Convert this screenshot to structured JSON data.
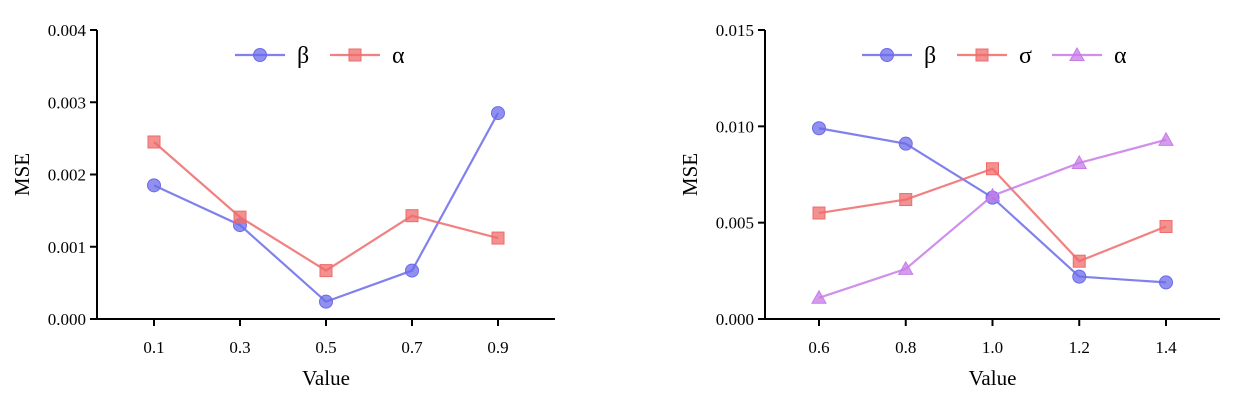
{
  "chart_data": [
    {
      "type": "line",
      "xlabel": "Value",
      "ylabel": "MSE",
      "categories": [
        "0.1",
        "0.3",
        "0.5",
        "0.7",
        "0.9"
      ],
      "ylim": [
        0,
        0.004
      ],
      "yticks": [
        "0.000",
        "0.001",
        "0.002",
        "0.003",
        "0.004"
      ],
      "grid": false,
      "legend_position": "top-center",
      "series": [
        {
          "name": "β",
          "marker": "circle",
          "color": "#6b6bea",
          "values": [
            0.00185,
            0.0013,
            0.00024,
            0.00067,
            0.00285
          ]
        },
        {
          "name": "α",
          "marker": "square",
          "color": "#ef6b6b",
          "values": [
            0.00245,
            0.00141,
            0.00067,
            0.00143,
            0.00112
          ]
        }
      ]
    },
    {
      "type": "line",
      "xlabel": "Value",
      "ylabel": "MSE",
      "categories": [
        "0.6",
        "0.8",
        "1.0",
        "1.2",
        "1.4"
      ],
      "ylim": [
        0,
        0.015
      ],
      "yticks": [
        "0.000",
        "0.005",
        "0.010",
        "0.015"
      ],
      "grid": false,
      "legend_position": "top-center",
      "series": [
        {
          "name": "β",
          "marker": "circle",
          "color": "#6b6bea",
          "values": [
            0.0099,
            0.0091,
            0.0063,
            0.0022,
            0.0019
          ]
        },
        {
          "name": "σ",
          "marker": "square",
          "color": "#ef6b6b",
          "values": [
            0.0055,
            0.0062,
            0.0078,
            0.003,
            0.0048
          ]
        },
        {
          "name": "α",
          "marker": "triangle",
          "color": "#c77be8",
          "values": [
            0.0011,
            0.0026,
            0.0064,
            0.0081,
            0.0093
          ]
        }
      ]
    }
  ]
}
